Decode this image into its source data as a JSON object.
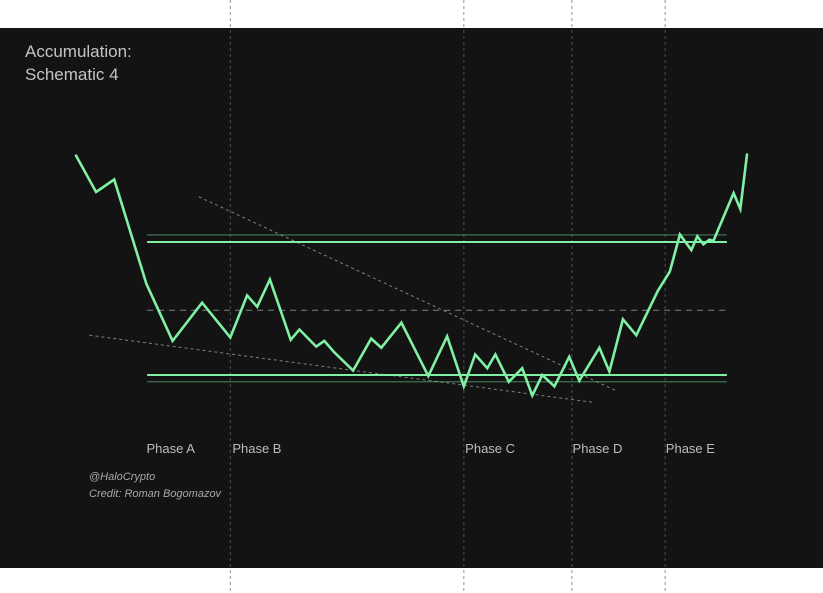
{
  "title_line1": "Accumulation:",
  "title_line2": "Schematic 4",
  "credit_handle": "@HaloCrypto",
  "credit_author": "Credit: Roman Bogomazov",
  "colors": {
    "background": "#131313",
    "price": "#7ff0a4",
    "guide": "#9a9a9a"
  },
  "chart_data": {
    "type": "line",
    "title": "Accumulation: Schematic 4",
    "xlabel": "",
    "ylabel": "",
    "xlim": [
      0,
      100
    ],
    "ylim": [
      0,
      100
    ],
    "grid": false,
    "phases": [
      {
        "label": "Phase A",
        "x": 10.5
      },
      {
        "label": "Phase B",
        "x": 23.3
      },
      {
        "label": "Phase C",
        "x": 58.0
      },
      {
        "label": "Phase D",
        "x": 74.0
      },
      {
        "label": "Phase E",
        "x": 87.9
      }
    ],
    "phase_dividers_x": [
      23.0,
      57.8,
      73.9,
      87.8
    ],
    "levels": {
      "resistance": 58.5,
      "resistance_outer": 61.6,
      "midline": 28.5,
      "support": 0.0,
      "support_outer": -3.0,
      "x_start": 10.6,
      "x_end": 97.0
    },
    "trendlines": [
      {
        "name": "upper",
        "x": [
          18.3,
          80.7
        ],
        "y": [
          78.4,
          -7.2
        ]
      },
      {
        "name": "lower",
        "x": [
          2.0,
          77.0
        ],
        "y": [
          17.5,
          -12.0
        ]
      }
    ],
    "series": [
      {
        "values": [
          [
            0.0,
            96.5
          ],
          [
            3.0,
            80.5
          ],
          [
            5.7,
            86.0
          ],
          [
            10.5,
            40.0
          ],
          [
            14.4,
            15.0
          ],
          [
            18.8,
            31.8
          ],
          [
            23.0,
            16.5
          ],
          [
            25.5,
            35.0
          ],
          [
            27.0,
            30.0
          ],
          [
            28.9,
            42.0
          ],
          [
            32.0,
            15.5
          ],
          [
            33.3,
            20.0
          ],
          [
            35.8,
            12.5
          ],
          [
            37.0,
            15.0
          ],
          [
            38.5,
            10.0
          ],
          [
            41.3,
            2.0
          ],
          [
            44.0,
            16.0
          ],
          [
            45.5,
            12.0
          ],
          [
            48.5,
            23.0
          ],
          [
            52.5,
            -0.5
          ],
          [
            55.3,
            17.0
          ],
          [
            57.8,
            -5.0
          ],
          [
            59.5,
            9.0
          ],
          [
            61.3,
            3.0
          ],
          [
            62.5,
            9.0
          ],
          [
            64.5,
            -3.0
          ],
          [
            66.5,
            3.0
          ],
          [
            68.0,
            -9.0
          ],
          [
            69.5,
            0.0
          ],
          [
            71.3,
            -5.0
          ],
          [
            73.5,
            8.0
          ],
          [
            75.0,
            -2.5
          ],
          [
            78.0,
            12.0
          ],
          [
            79.5,
            1.5
          ],
          [
            81.5,
            24.5
          ],
          [
            83.5,
            17.5
          ],
          [
            86.7,
            37.0
          ],
          [
            88.5,
            45.5
          ],
          [
            90.0,
            61.8
          ],
          [
            91.7,
            55.0
          ],
          [
            92.6,
            61.0
          ],
          [
            93.5,
            57.5
          ],
          [
            94.4,
            59.5
          ],
          [
            95.0,
            59.0
          ],
          [
            98.0,
            80.0
          ],
          [
            99.0,
            73.0
          ],
          [
            100.0,
            97.0
          ]
        ]
      }
    ]
  }
}
